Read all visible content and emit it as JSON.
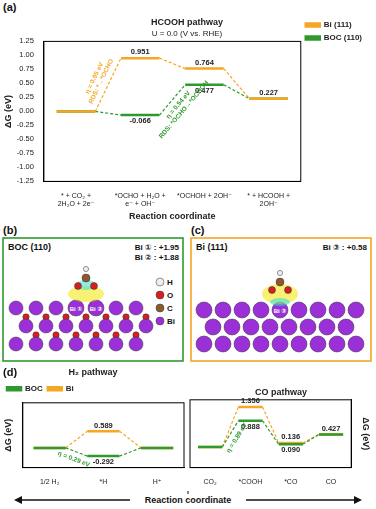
{
  "panel_labels": [
    "(a)",
    "(b)",
    "(c)",
    "(d)"
  ],
  "chart_data": [
    {
      "type": "line",
      "title": "HCOOH pathway",
      "subtitle": "U = 0.0 (V vs. RHE)",
      "x_label": "Reaction coordinate",
      "y_label": "ΔG (eV)",
      "categories": [
        "* + CO₂ + 2H₂O + 2e⁻",
        "*OCHO + H₂O + e⁻ + OH⁻",
        "*OCHOH + 2OH⁻",
        "* + HCOOH + 2OH⁻"
      ],
      "series": [
        {
          "name": "Bi (111)",
          "color": "#f5a623",
          "values": [
            0,
            0.951,
            0.764,
            0.227
          ],
          "value_labels": [
            null,
            "0.951",
            "0.764",
            "0.227"
          ]
        },
        {
          "name": "BOC (110)",
          "color": "#2e9a2e",
          "values": [
            0,
            -0.066,
            0.477,
            0.227
          ],
          "value_labels": [
            null,
            "-0.066",
            "0.477",
            null
          ]
        }
      ],
      "annotations": [
        {
          "text": [
            "η = 0.95 eV",
            "RDS: *→*OCHO"
          ],
          "series": "Bi (111)",
          "step": 0
        },
        {
          "text": [
            "η = 0.54 eV",
            "RDS: *OCHO→*OCHOH"
          ],
          "series": "BOC (110)",
          "step": 1
        }
      ],
      "ylim": [
        -1.25,
        1.25
      ],
      "yticks": [
        -1.25,
        {
          "value": -1,
          "label": "-1.00"
        },
        -0.75,
        {
          "value": -0.5,
          "label": "-0.50"
        },
        -0.25,
        {
          "value": 0,
          "label": "0.00"
        },
        0.25,
        {
          "value": 0.5,
          "label": "0.50"
        },
        0.75,
        {
          "value": 1,
          "label": "1.00"
        },
        1.25
      ],
      "legend": "right",
      "grid": false
    },
    {
      "type": "line",
      "title": "H₂ pathway",
      "x_label": "Reaction coordinate",
      "y_label": "ΔG (eV)",
      "categories": [
        "1/2 H₂",
        "*H",
        "H⁺"
      ],
      "series": [
        {
          "name": "BOC",
          "color": "#2e9a2e",
          "values": [
            0,
            -0.292,
            0
          ],
          "value_labels": [
            null,
            "-0.292",
            null
          ]
        },
        {
          "name": "Bi",
          "color": "#f5a623",
          "values": [
            0,
            0.589,
            0
          ],
          "value_labels": [
            null,
            "0.589",
            null
          ]
        }
      ],
      "annotations": [
        {
          "text": "η = 0.29 eV",
          "series": "BOC",
          "step": 0
        }
      ],
      "ylim": [
        -0.7,
        1.6
      ],
      "tick_labels": "x",
      "legend": "top",
      "grid": false
    },
    {
      "type": "line",
      "title": "CO pathway",
      "y_label": "ΔG (eV)",
      "categories": [
        "CO₂",
        "*COOH",
        "*CO",
        "CO"
      ],
      "series": [
        {
          "name": "BOC",
          "color": "#2e9a2e",
          "values": [
            0,
            0.888,
            0.09,
            0.427
          ],
          "value_labels": [
            null,
            "0.888",
            "0.090",
            null
          ]
        },
        {
          "name": "Bi",
          "color": "#f5a623",
          "values": [
            0,
            1.356,
            0.136,
            0.427
          ],
          "value_labels": [
            null,
            "1.356",
            "0.136",
            "0.427"
          ]
        }
      ],
      "annotations": [
        {
          "text": "η = 0.89 eV",
          "series": "BOC",
          "step": 0
        }
      ],
      "ylim": [
        -0.7,
        1.6
      ],
      "tick_labels": "x",
      "grid": false
    }
  ],
  "structures": [
    {
      "title": "BOC (110)",
      "color": "#2e9a2e",
      "charges": [
        {
          "label": "Bi ① : +1.95",
          "atom": "Bi ①"
        },
        {
          "label": "Bi ② : +1.88",
          "atom": "Bi ②"
        }
      ],
      "legend": [
        {
          "name": "H",
          "color": "#eeeeee"
        },
        {
          "name": "O",
          "color": "#d62020"
        },
        {
          "name": "C",
          "color": "#8b5a2b"
        },
        {
          "name": "Bi",
          "color": "#9b30d9"
        }
      ]
    },
    {
      "title": "Bi (111)",
      "color": "#f5a623",
      "charges": [
        {
          "label": "Bi ③ : +0.58",
          "atom": "Bi ③"
        }
      ]
    }
  ]
}
